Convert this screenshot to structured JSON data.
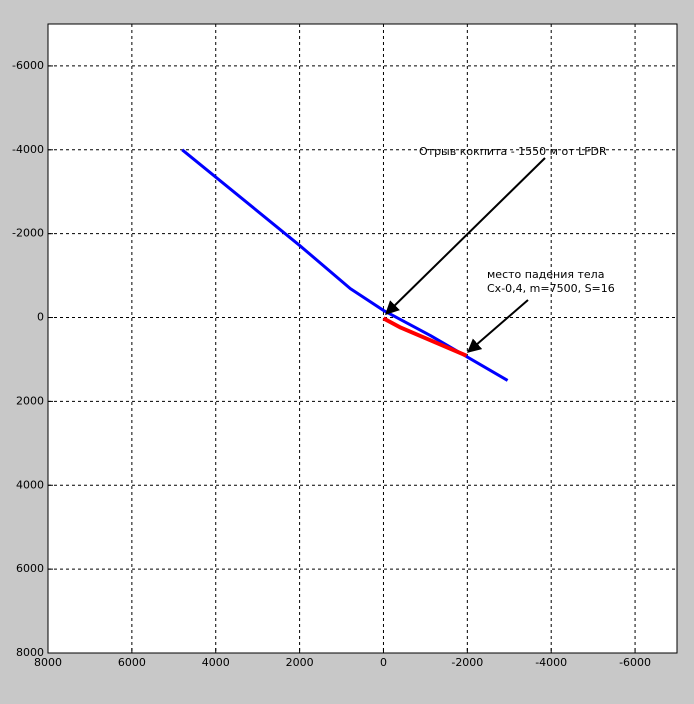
{
  "chart_data": {
    "type": "line",
    "xlim": [
      8000,
      -7000
    ],
    "ylim": [
      -7000,
      8000
    ],
    "xticks": [
      8000,
      6000,
      4000,
      2000,
      0,
      -2000,
      -4000,
      -6000
    ],
    "yticks": [
      -6000,
      -4000,
      -2000,
      0,
      2000,
      4000,
      6000,
      8000
    ],
    "grid": true,
    "series": [
      {
        "color": "#0000ff",
        "x": [
          4800,
          2000,
          790,
          0,
          -1120,
          -2960
        ],
        "values": [
          -4000,
          -1720,
          -690,
          -170,
          430,
          1500
        ]
      },
      {
        "color": "#ff0000",
        "x": [
          0,
          -410,
          -1980
        ],
        "values": [
          20,
          240,
          910
        ]
      }
    ],
    "annotations": [
      {
        "text": "Отрыв кокпита - 1550 м от LFDR"
      },
      {
        "text": "место падения тела"
      },
      {
        "text": "Cx-0,4, m=7500, S=16"
      }
    ]
  }
}
